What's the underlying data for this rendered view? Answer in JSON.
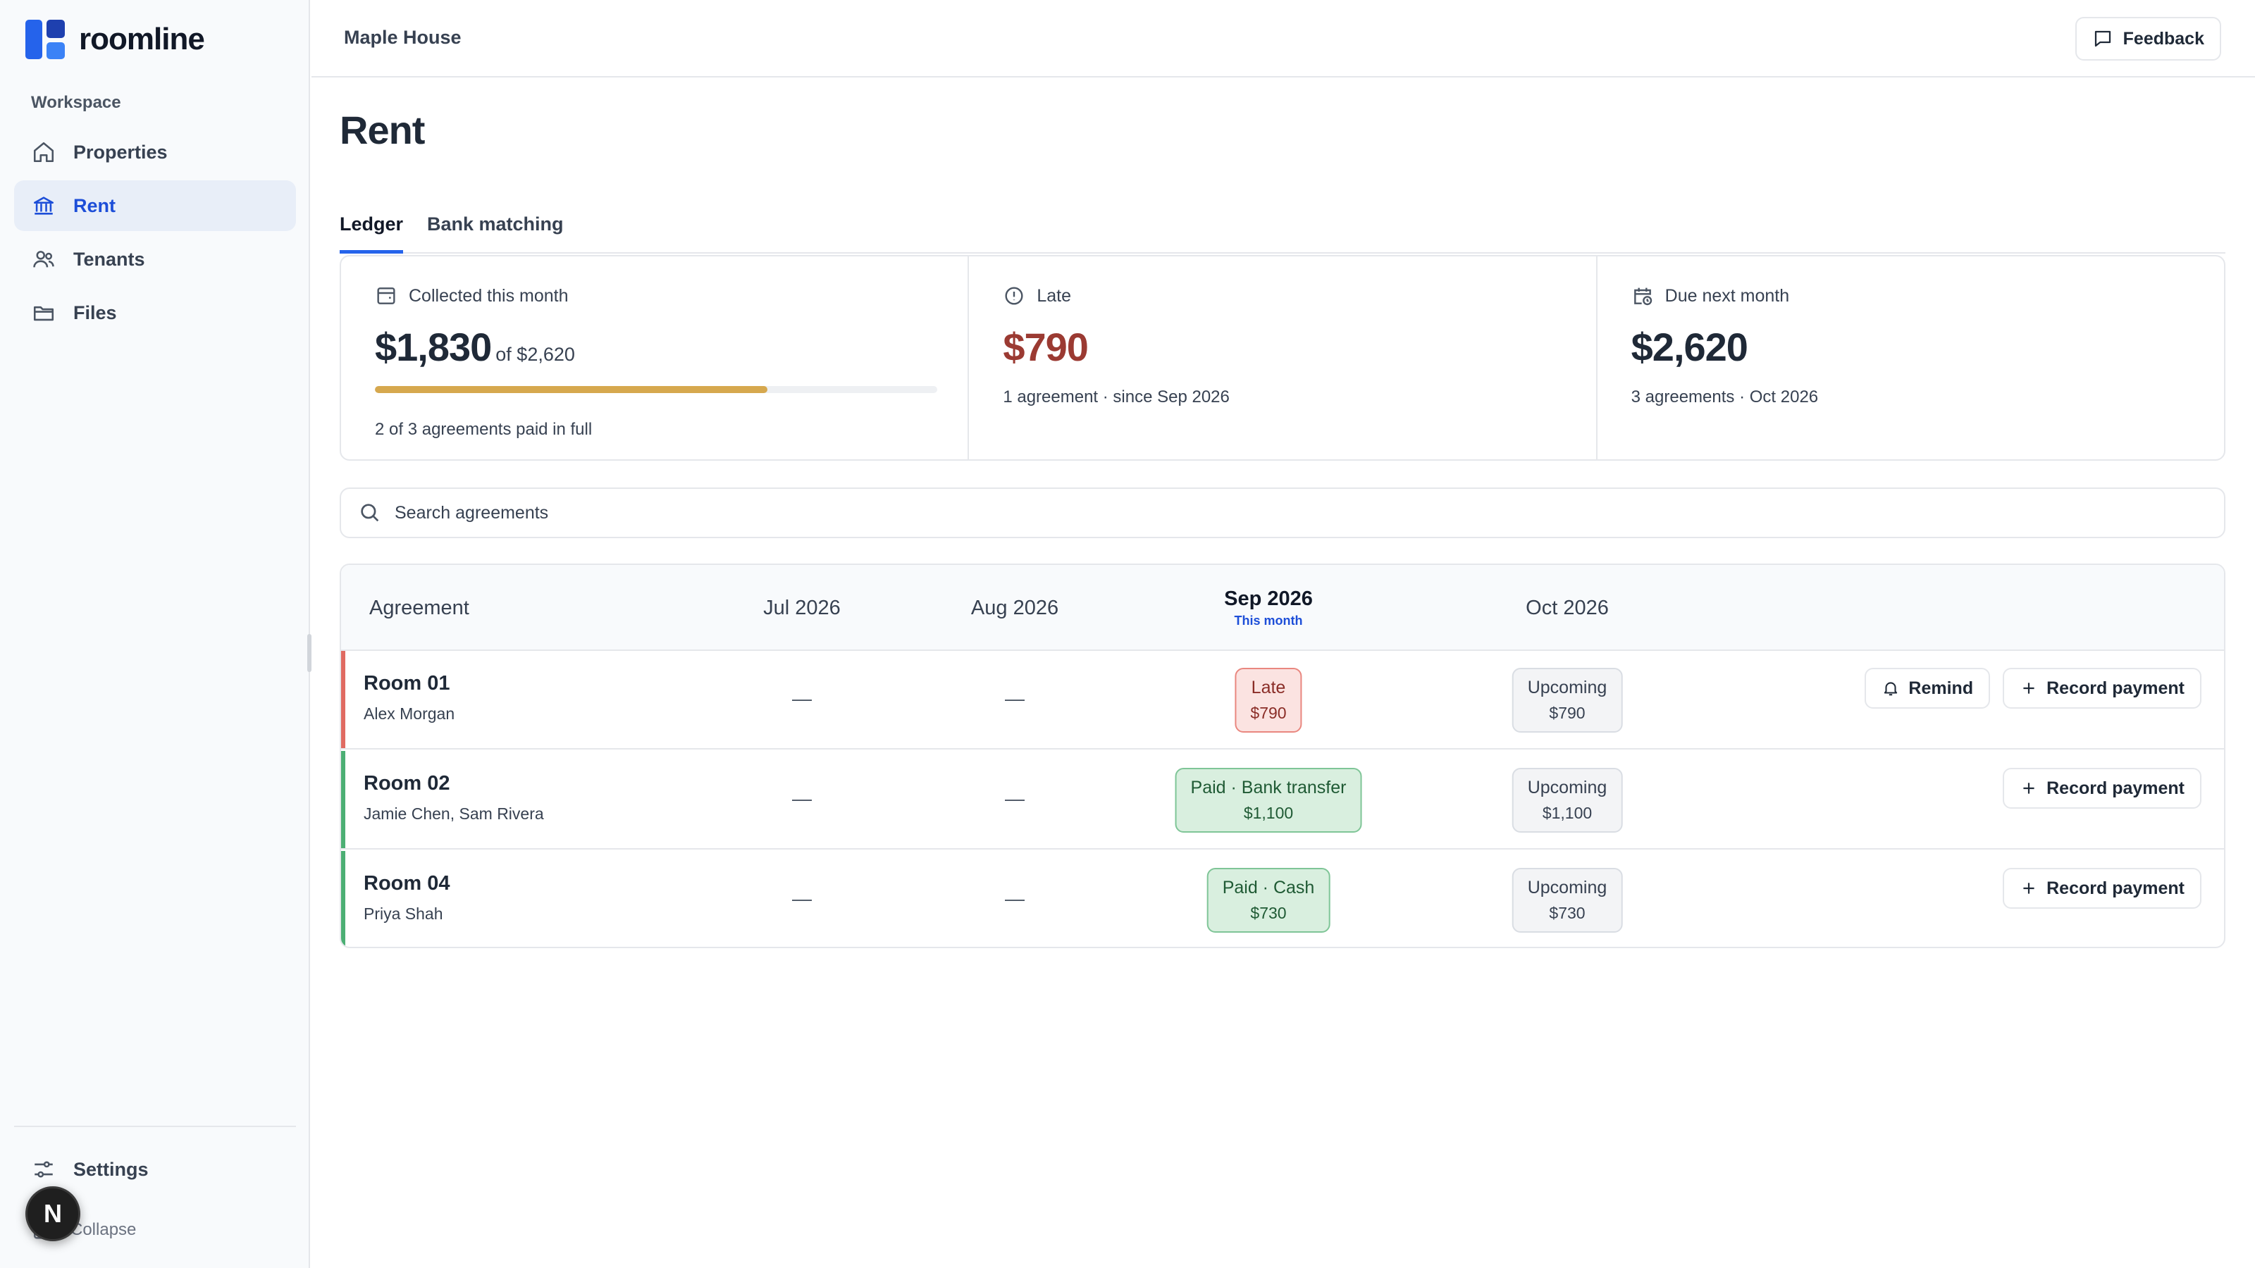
{
  "brand": {
    "name": "roomline"
  },
  "sidebar": {
    "section": "Workspace",
    "items": [
      {
        "label": "Properties",
        "icon": "home-icon"
      },
      {
        "label": "Rent",
        "icon": "bank-icon"
      },
      {
        "label": "Tenants",
        "icon": "users-icon"
      },
      {
        "label": "Files",
        "icon": "folder-icon"
      }
    ],
    "settings": "Settings",
    "collapse": "Collapse",
    "avatar_initial": "N"
  },
  "header": {
    "breadcrumb": "Maple House",
    "feedback": "Feedback"
  },
  "page": {
    "title": "Rent",
    "tabs": [
      {
        "label": "Ledger"
      },
      {
        "label": "Bank matching"
      }
    ]
  },
  "stats": {
    "collected": {
      "label": "Collected this month",
      "value": "$1,830",
      "of": "of $2,620",
      "progress_percent": 69.8,
      "sub": "2 of 3 agreements paid in full"
    },
    "late": {
      "label": "Late",
      "value": "$790",
      "sub": "1 agreement · since Sep 2026"
    },
    "due": {
      "label": "Due next month",
      "value": "$2,620",
      "sub": "3 agreements · Oct 2026"
    }
  },
  "search": {
    "placeholder": "Search agreements"
  },
  "table": {
    "headers": {
      "agreement": "Agreement",
      "jul": "Jul 2026",
      "aug": "Aug 2026",
      "sep": "Sep 2026",
      "sep_sub": "This month",
      "oct": "Oct 2026"
    },
    "dash": "—",
    "rows": [
      {
        "room": "Room 01",
        "tenant": "Alex Morgan",
        "sep": {
          "label": "Late",
          "amount": "$790",
          "status": "late"
        },
        "oct": {
          "label": "Upcoming",
          "amount": "$790",
          "status": "upcoming"
        },
        "remind": "Remind",
        "record": "Record payment",
        "accent": "#e06b62"
      },
      {
        "room": "Room 02",
        "tenant": "Jamie Chen, Sam Rivera",
        "sep": {
          "label": "Paid · Bank transfer",
          "amount": "$1,100",
          "status": "paid"
        },
        "oct": {
          "label": "Upcoming",
          "amount": "$1,100",
          "status": "upcoming"
        },
        "record": "Record payment",
        "accent": "#4caf74"
      },
      {
        "room": "Room 04",
        "tenant": "Priya Shah",
        "sep": {
          "label": "Paid · Cash",
          "amount": "$730",
          "status": "paid"
        },
        "oct": {
          "label": "Upcoming",
          "amount": "$730",
          "status": "upcoming"
        },
        "record": "Record payment",
        "accent": "#4caf74"
      }
    ]
  },
  "colors": {
    "accent": "#2563eb",
    "late": "#9b3a32",
    "progress": "#d6a84e"
  }
}
